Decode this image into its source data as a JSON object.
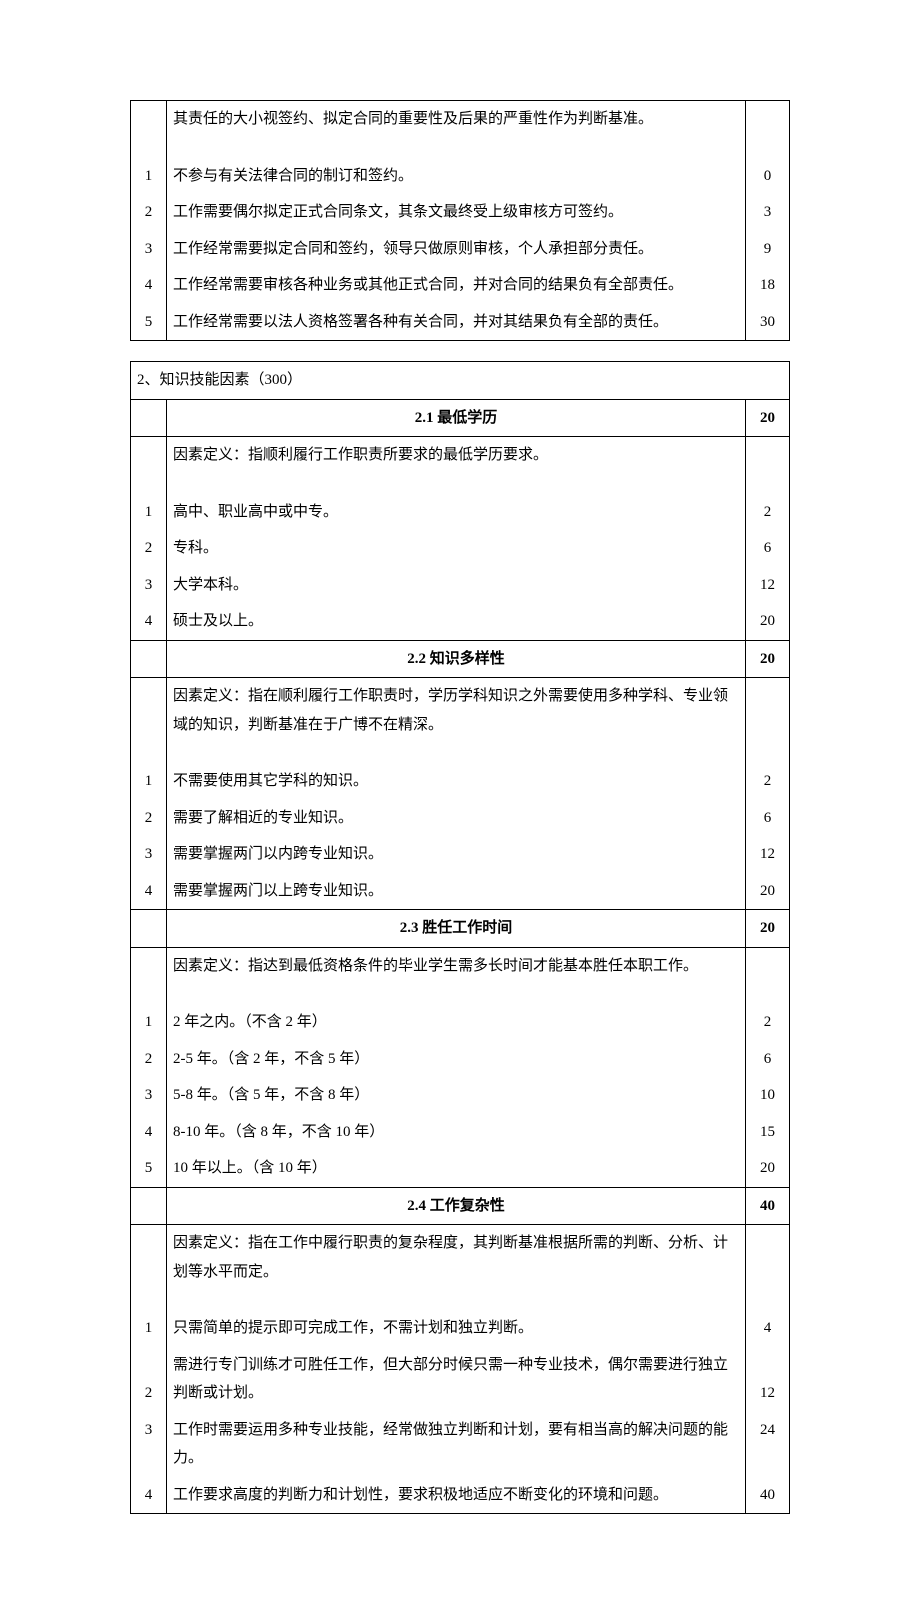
{
  "top_table": {
    "definition": "其责任的大小视签约、拟定合同的重要性及后果的严重性作为判断基准。",
    "levels": [
      {
        "num": "1",
        "desc": "不参与有关法律合同的制订和签约。",
        "score": "0"
      },
      {
        "num": "2",
        "desc": "工作需要偶尔拟定正式合同条文，其条文最终受上级审核方可签约。",
        "score": "3"
      },
      {
        "num": "3",
        "desc": "工作经常需要拟定合同和签约，领导只做原则审核，个人承担部分责任。",
        "score": "9"
      },
      {
        "num": "4",
        "desc": "工作经常需要审核各种业务或其他正式合同，并对合同的结果负有全部责任。",
        "score": "18"
      },
      {
        "num": "5",
        "desc": "工作经常需要以法人资格签署各种有关合同，并对其结果负有全部的责任。",
        "score": "30"
      }
    ]
  },
  "section2": {
    "title": "2、知识技能因素（300）",
    "factors": [
      {
        "header": "2.1 最低学历",
        "max": "20",
        "definition": "因素定义：指顺利履行工作职责所要求的最低学历要求。",
        "levels": [
          {
            "num": "1",
            "desc": "高中、职业高中或中专。",
            "score": "2"
          },
          {
            "num": "2",
            "desc": "专科。",
            "score": "6"
          },
          {
            "num": "3",
            "desc": "大学本科。",
            "score": "12"
          },
          {
            "num": "4",
            "desc": "硕士及以上。",
            "score": "20"
          }
        ]
      },
      {
        "header": "2.2 知识多样性",
        "max": "20",
        "definition": "因素定义：指在顺利履行工作职责时，学历学科知识之外需要使用多种学科、专业领域的知识，判断基准在于广博不在精深。",
        "levels": [
          {
            "num": "1",
            "desc": "不需要使用其它学科的知识。",
            "score": "2"
          },
          {
            "num": "2",
            "desc": "需要了解相近的专业知识。",
            "score": "6"
          },
          {
            "num": "3",
            "desc": "需要掌握两门以内跨专业知识。",
            "score": "12"
          },
          {
            "num": "4",
            "desc": "需要掌握两门以上跨专业知识。",
            "score": "20"
          }
        ]
      },
      {
        "header": "2.3 胜任工作时间",
        "max": "20",
        "definition": "因素定义：指达到最低资格条件的毕业学生需多长时间才能基本胜任本职工作。",
        "levels": [
          {
            "num": "1",
            "desc": "2 年之内。（不含 2 年）",
            "score": "2"
          },
          {
            "num": "2",
            "desc": "2-5 年。（含 2 年，不含 5 年）",
            "score": "6"
          },
          {
            "num": "3",
            "desc": "5-8 年。（含 5 年，不含 8 年）",
            "score": "10"
          },
          {
            "num": "4",
            "desc": "8-10 年。（含 8 年，不含 10 年）",
            "score": "15"
          },
          {
            "num": "5",
            "desc": "10 年以上。（含 10 年）",
            "score": "20"
          }
        ]
      },
      {
        "header": "2.4 工作复杂性",
        "max": "40",
        "definition": "因素定义：指在工作中履行职责的复杂程度，其判断基准根据所需的判断、分析、计划等水平而定。",
        "levels": [
          {
            "num": "1",
            "desc": "只需简单的提示即可完成工作，不需计划和独立判断。",
            "score": "4"
          },
          {
            "num": "2",
            "desc": "需进行专门训练才可胜任工作，但大部分时候只需一种专业技术，偶尔需要进行独立判断或计划。",
            "score": "12"
          },
          {
            "num": "3",
            "desc": "工作时需要运用多种专业技能，经常做独立判断和计划，要有相当高的解决问题的能力。",
            "score": "24"
          },
          {
            "num": "4",
            "desc": "工作要求高度的判断力和计划性，要求积极地适应不断变化的环境和问题。",
            "score": "40"
          }
        ]
      }
    ]
  }
}
